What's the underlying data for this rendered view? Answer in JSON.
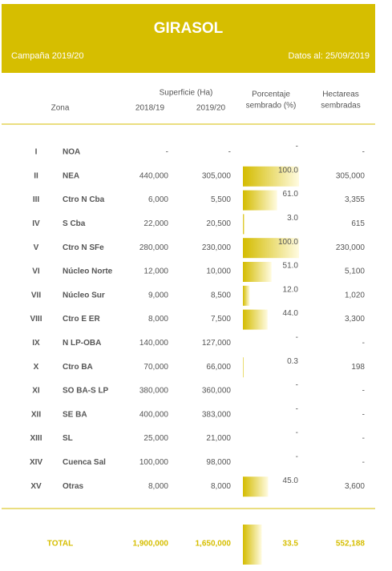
{
  "header": {
    "title": "GIRASOL",
    "campaign": "Campaña 2019/20",
    "date": "Datos al: 25/09/2019"
  },
  "table": {
    "columns": {
      "zona": "Zona",
      "superficie": "Superficie (Ha)",
      "y1": "2018/19",
      "y2": "2019/20",
      "pct": [
        "Porcentaje",
        "sembrado (%)"
      ],
      "ha": [
        "Hectareas",
        "sembradas"
      ]
    },
    "rows": [
      [
        "I",
        "NOA",
        "-",
        "-",
        "-",
        "-"
      ],
      [
        "II",
        "NEA",
        "440,000",
        "305,000",
        "100.0",
        "305,000"
      ],
      [
        "III",
        "Ctro N Cba",
        "6,000",
        "5,500",
        "61.0",
        "3,355"
      ],
      [
        "IV",
        "S Cba",
        "22,000",
        "20,500",
        "3.0",
        "615"
      ],
      [
        "V",
        "Ctro N SFe",
        "280,000",
        "230,000",
        "100.0",
        "230,000"
      ],
      [
        "VI",
        "Núcleo Norte",
        "12,000",
        "10,000",
        "51.0",
        "5,100"
      ],
      [
        "VII",
        "Núcleo Sur",
        "9,000",
        "8,500",
        "12.0",
        "1,020"
      ],
      [
        "VIII",
        "Ctro E ER",
        "8,000",
        "7,500",
        "44.0",
        "3,300"
      ],
      [
        "IX",
        "N LP-OBA",
        "140,000",
        "127,000",
        "-",
        "-"
      ],
      [
        "X",
        "Ctro BA",
        "70,000",
        "66,000",
        "0.3",
        "198"
      ],
      [
        "XI",
        "SO BA-S LP",
        "380,000",
        "360,000",
        "-",
        "-"
      ],
      [
        "XII",
        "SE BA",
        "400,000",
        "383,000",
        "-",
        "-"
      ],
      [
        "XIII",
        "SL",
        "25,000",
        "21,000",
        "-",
        "-"
      ],
      [
        "XIV",
        "Cuenca Sal",
        "100,000",
        "98,000",
        "-",
        "-"
      ],
      [
        "XV",
        "Otras",
        "8,000",
        "8,000",
        "45.0",
        "3,600"
      ]
    ],
    "total": [
      "TOTAL",
      "1,900,000",
      "1,650,000",
      "33.5",
      "552,188"
    ]
  }
}
